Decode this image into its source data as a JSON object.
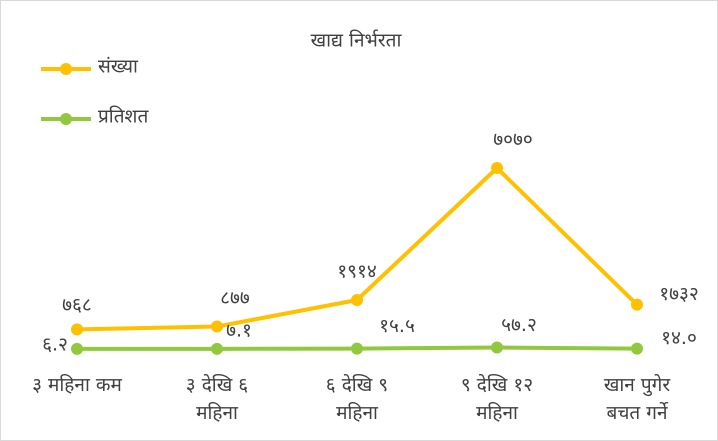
{
  "chart_data": {
    "type": "line",
    "title": "खाद्य निर्भरता",
    "categories": [
      "३ महिना कम",
      "३ देखि ६ महिना",
      "६ देखि ९ महिना",
      "९ देखि १२ महिना",
      "खान पुगेर बचत गर्ने"
    ],
    "series": [
      {
        "name": "संख्या",
        "color": "#FFC000",
        "values": [
          768,
          877,
          1914,
          7070,
          1732
        ],
        "value_labels": [
          "७६८",
          "८७७",
          "१९१४",
          "७०७०",
          "१७३२"
        ]
      },
      {
        "name": "प्रतिशत",
        "color": "#92C83E",
        "values": [
          6.2,
          7.1,
          15.5,
          57.2,
          14.0
        ],
        "value_labels": [
          "६.२",
          "७.१",
          "१५.५",
          "५७.२",
          "१४.०"
        ]
      }
    ],
    "ylim": [
      0,
      7500
    ],
    "legend": "top-left"
  }
}
